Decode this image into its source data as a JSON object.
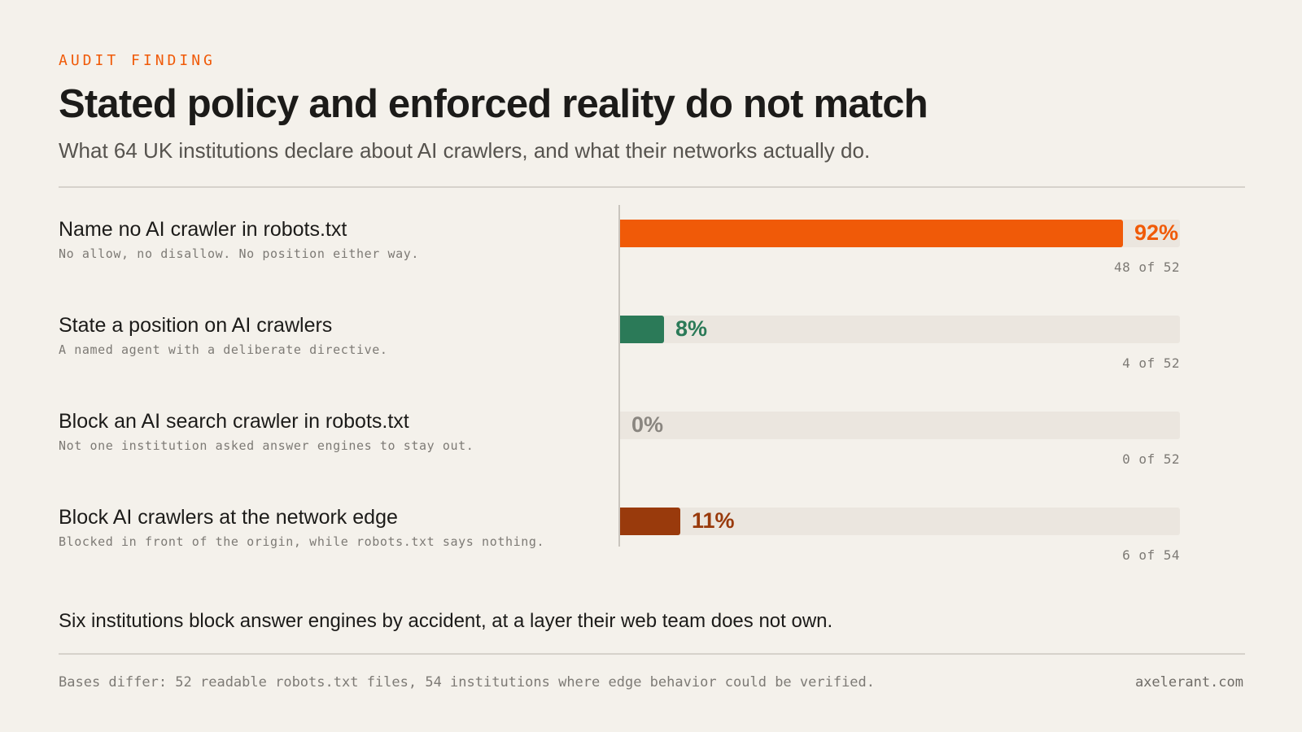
{
  "eyebrow": "AUDIT FINDING",
  "title": "Stated policy and enforced reality do not match",
  "subtitle": "What 64 UK institutions declare about AI crawlers, and what their networks actually do.",
  "takeaway": "Six institutions block answer engines by accident, at a layer their web team does not own.",
  "footnote": "Bases differ: 52 readable robots.txt files, 54 institutions where edge behavior could be verified.",
  "credit": "axelerant.com",
  "colors": {
    "accent": "#f05a08",
    "green": "#2b7a58",
    "brown": "#993a0c",
    "muted": "#7d7a75",
    "track": "#ebe6df"
  },
  "chart_data": {
    "type": "bar",
    "orientation": "horizontal",
    "xlim": [
      0,
      100
    ],
    "categories": [
      "Name no AI crawler in robots.txt",
      "State a position on AI crawlers",
      "Block an AI search crawler in robots.txt",
      "Block AI crawlers at the network edge"
    ],
    "values": [
      92,
      8,
      0,
      11
    ],
    "rows": [
      {
        "label": "Name no AI crawler in robots.txt",
        "note": "No allow, no disallow. No position either way.",
        "value": 92,
        "value_label": "92%",
        "count_label": "48 of 52",
        "color": "#f05a08"
      },
      {
        "label": "State a position on AI crawlers",
        "note": "A named agent with a deliberate directive.",
        "value": 8,
        "value_label": "8%",
        "count_label": "4 of 52",
        "color": "#2b7a58"
      },
      {
        "label": "Block an AI search crawler in robots.txt",
        "note": "Not one institution asked answer engines to stay out.",
        "value": 0,
        "value_label": "0%",
        "count_label": "0 of 52",
        "color": "#8a8680"
      },
      {
        "label": "Block AI crawlers at the network edge",
        "note": "Blocked in front of the origin, while robots.txt says nothing.",
        "value": 11,
        "value_label": "11%",
        "count_label": "6 of 54",
        "color": "#993a0c"
      }
    ]
  }
}
